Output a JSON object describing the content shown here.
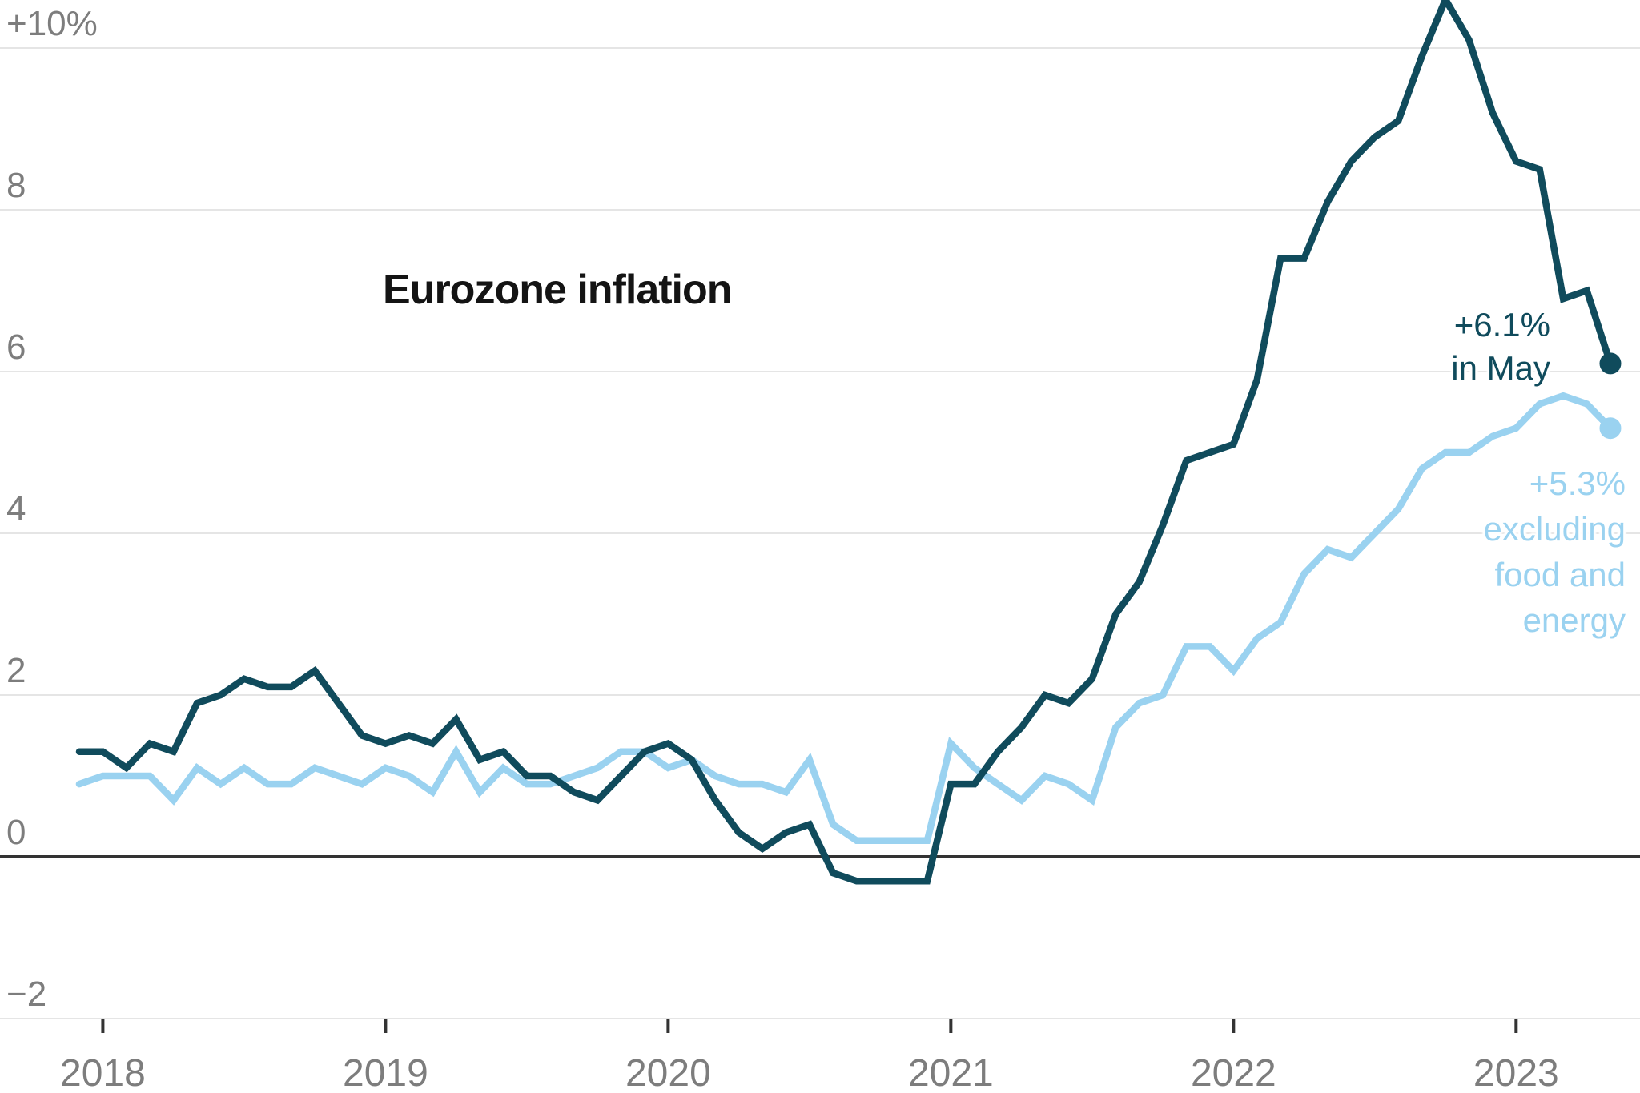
{
  "title": {
    "text": "Eurozone inflation"
  },
  "annotations": {
    "headline": {
      "lines": [
        "+6.1%",
        "in May"
      ]
    },
    "core": {
      "lines": [
        "+5.3%",
        "excluding",
        "food and",
        "energy"
      ]
    }
  },
  "colors": {
    "headline_line": "#104b5c",
    "core_line": "#9ad2f0",
    "gridline": "#e5e5e5",
    "zero_line": "#333333",
    "tick": "#333333",
    "axis_text": "#7d7d7d",
    "title_text": "#141414"
  },
  "chart_data": {
    "type": "line",
    "title": "Eurozone inflation",
    "grid": true,
    "x_axis": {
      "start_month": "2017-12",
      "end_month": "2023-05",
      "tick_labels": [
        "2018",
        "2019",
        "2020",
        "2021",
        "2022",
        "2023"
      ]
    },
    "y_axis": {
      "unit": "percent",
      "ylim": [
        -2,
        10.6
      ],
      "ticks": [
        {
          "label": "+10%",
          "value": 10
        },
        {
          "label": "8",
          "value": 8
        },
        {
          "label": "6",
          "value": 6
        },
        {
          "label": "4",
          "value": 4
        },
        {
          "label": "2",
          "value": 2
        },
        {
          "label": "0",
          "value": 0
        },
        {
          "label": "−2",
          "value": -2
        }
      ]
    },
    "series": [
      {
        "name": "inflation excluding food and energy",
        "annotation": "+5.3% excluding food and energy",
        "color_key": "core_line",
        "last_value": 5.3,
        "values": [
          0.9,
          1.0,
          1.0,
          1.0,
          0.7,
          1.1,
          0.9,
          1.1,
          0.9,
          0.9,
          1.1,
          1.0,
          0.9,
          1.1,
          1.0,
          0.8,
          1.3,
          0.8,
          1.1,
          0.9,
          0.9,
          1.0,
          1.1,
          1.3,
          1.3,
          1.1,
          1.2,
          1.0,
          0.9,
          0.9,
          0.8,
          1.2,
          0.4,
          0.2,
          0.2,
          0.2,
          0.2,
          1.4,
          1.1,
          0.9,
          0.7,
          1.0,
          0.9,
          0.7,
          1.6,
          1.9,
          2.0,
          2.6,
          2.6,
          2.3,
          2.7,
          2.9,
          3.5,
          3.8,
          3.7,
          4.0,
          4.3,
          4.8,
          5.0,
          5.0,
          5.2,
          5.3,
          5.6,
          5.7,
          5.6,
          5.3
        ]
      },
      {
        "name": "headline inflation",
        "annotation": "+6.1% in May",
        "color_key": "headline_line",
        "last_value": 6.1,
        "values": [
          1.3,
          1.3,
          1.1,
          1.4,
          1.3,
          1.9,
          2.0,
          2.2,
          2.1,
          2.1,
          2.3,
          1.9,
          1.5,
          1.4,
          1.5,
          1.4,
          1.7,
          1.2,
          1.3,
          1.0,
          1.0,
          0.8,
          0.7,
          1.0,
          1.3,
          1.4,
          1.2,
          0.7,
          0.3,
          0.1,
          0.3,
          0.4,
          -0.2,
          -0.3,
          -0.3,
          -0.3,
          -0.3,
          0.9,
          0.9,
          1.3,
          1.6,
          2.0,
          1.9,
          2.2,
          3.0,
          3.4,
          4.1,
          4.9,
          5.0,
          5.1,
          5.9,
          7.4,
          7.4,
          8.1,
          8.6,
          8.9,
          9.1,
          9.9,
          10.6,
          10.1,
          9.2,
          8.6,
          8.5,
          6.9,
          7.0,
          6.1
        ]
      }
    ]
  }
}
